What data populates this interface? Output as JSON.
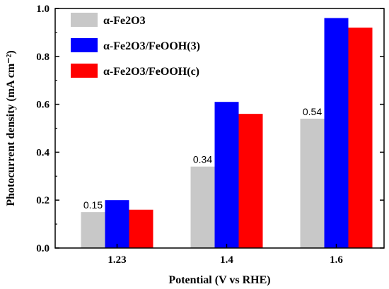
{
  "chart_data": {
    "type": "bar",
    "categories": [
      "1.23",
      "1.4",
      "1.6"
    ],
    "series": [
      {
        "name": "α-Fe2O3",
        "values": [
          0.15,
          0.34,
          0.54
        ],
        "color": "#c8c8c8"
      },
      {
        "name": "α-Fe2O3/FeOOH(3)",
        "values": [
          0.2,
          0.61,
          0.96
        ],
        "color": "#0000ff"
      },
      {
        "name": "α-Fe2O3/FeOOH(c)",
        "values": [
          0.16,
          0.56,
          0.92
        ],
        "color": "#ff0000"
      }
    ],
    "data_labels": [
      "0.15",
      "0.34",
      "0.54"
    ],
    "xlabel": "Potential (V vs RHE)",
    "ylabel": "Photocurrent density (mA cm⁻²)",
    "ylim": [
      0.0,
      1.0
    ],
    "yticks": [
      "0.0",
      "0.2",
      "0.4",
      "0.6",
      "0.8",
      "1.0"
    ],
    "legend_position": "top-left",
    "grid": false
  }
}
